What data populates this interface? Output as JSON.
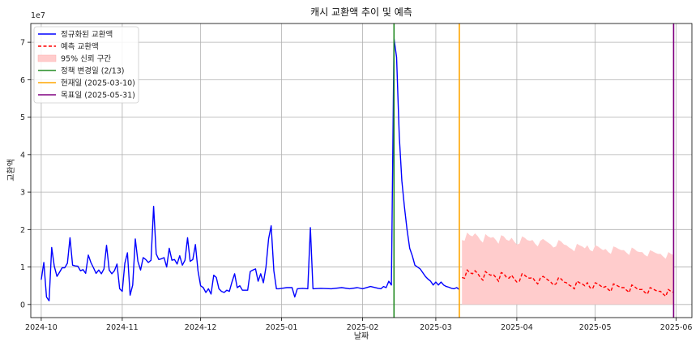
{
  "chart_data": {
    "type": "line",
    "title": "캐시 교환액 추이 및 예측",
    "xlabel": "날짜",
    "ylabel": "교환액",
    "y_scale_label": "1e7",
    "y_scale": 10000000,
    "xlim": [
      "2024-09-27",
      "2025-06-07"
    ],
    "ylim": [
      -0.35,
      7.5
    ],
    "grid": true,
    "legend_placement": "top-left",
    "x_ticks": [
      "2024-10-01",
      "2024-11-01",
      "2024-12-01",
      "2025-01-01",
      "2025-02-01",
      "2025-03-01",
      "2025-04-01",
      "2025-05-01",
      "2025-06-01"
    ],
    "x_tick_labels": [
      "2024-10",
      "2024-11",
      "2024-12",
      "2025-01",
      "2025-02",
      "2025-03",
      "2025-04",
      "2025-05",
      "2025-06"
    ],
    "y_ticks": [
      0,
      1,
      2,
      3,
      4,
      5,
      6,
      7
    ],
    "y_tick_labels": [
      "0",
      "1",
      "2",
      "3",
      "4",
      "5",
      "6",
      "7"
    ],
    "series": [
      {
        "name": "정규화된 교환액",
        "color": "#0000ff",
        "style": "solid",
        "x": [
          "2024-10-01",
          "2024-10-02",
          "2024-10-03",
          "2024-10-04",
          "2024-10-05",
          "2024-10-06",
          "2024-10-07",
          "2024-10-08",
          "2024-10-09",
          "2024-10-10",
          "2024-10-11",
          "2024-10-12",
          "2024-10-13",
          "2024-10-14",
          "2024-10-15",
          "2024-10-16",
          "2024-10-17",
          "2024-10-18",
          "2024-10-19",
          "2024-10-20",
          "2024-10-21",
          "2024-10-22",
          "2024-10-23",
          "2024-10-24",
          "2024-10-25",
          "2024-10-26",
          "2024-10-27",
          "2024-10-28",
          "2024-10-29",
          "2024-10-30",
          "2024-10-31",
          "2024-11-01",
          "2024-11-02",
          "2024-11-03",
          "2024-11-04",
          "2024-11-05",
          "2024-11-06",
          "2024-11-07",
          "2024-11-08",
          "2024-11-09",
          "2024-11-10",
          "2024-11-11",
          "2024-11-12",
          "2024-11-13",
          "2024-11-14",
          "2024-11-15",
          "2024-11-16",
          "2024-11-17",
          "2024-11-18",
          "2024-11-19",
          "2024-11-20",
          "2024-11-21",
          "2024-11-22",
          "2024-11-23",
          "2024-11-24",
          "2024-11-25",
          "2024-11-26",
          "2024-11-27",
          "2024-11-28",
          "2024-11-29",
          "2024-11-30",
          "2024-12-01",
          "2024-12-02",
          "2024-12-03",
          "2024-12-04",
          "2024-12-05",
          "2024-12-06",
          "2024-12-07",
          "2024-12-08",
          "2024-12-09",
          "2024-12-10",
          "2024-12-11",
          "2024-12-12",
          "2024-12-13",
          "2024-12-14",
          "2024-12-15",
          "2024-12-16",
          "2024-12-17",
          "2024-12-18",
          "2024-12-19",
          "2024-12-20",
          "2024-12-21",
          "2024-12-22",
          "2024-12-23",
          "2024-12-24",
          "2024-12-25",
          "2024-12-26",
          "2024-12-27",
          "2024-12-28",
          "2024-12-29",
          "2024-12-30",
          "2024-12-31",
          "2025-01-01",
          "2025-01-03",
          "2025-01-05",
          "2025-01-06",
          "2025-01-07",
          "2025-01-09",
          "2025-01-11",
          "2025-01-12",
          "2025-01-13",
          "2025-01-16",
          "2025-01-20",
          "2025-01-24",
          "2025-01-27",
          "2025-01-30",
          "2025-02-01",
          "2025-02-04",
          "2025-02-07",
          "2025-02-08",
          "2025-02-09",
          "2025-02-10",
          "2025-02-11",
          "2025-02-12",
          "2025-02-13",
          "2025-02-14",
          "2025-02-15",
          "2025-02-16",
          "2025-02-17",
          "2025-02-18",
          "2025-02-19",
          "2025-02-20",
          "2025-02-21",
          "2025-02-22",
          "2025-02-23",
          "2025-02-24",
          "2025-02-25",
          "2025-02-26",
          "2025-02-27",
          "2025-02-28",
          "2025-03-01",
          "2025-03-02",
          "2025-03-03",
          "2025-03-04",
          "2025-03-05",
          "2025-03-06",
          "2025-03-07",
          "2025-03-08",
          "2025-03-09",
          "2025-03-10"
        ],
        "values": [
          0.66,
          1.12,
          0.2,
          0.1,
          1.52,
          1.02,
          0.75,
          0.86,
          0.98,
          0.98,
          1.1,
          1.78,
          1.05,
          1.03,
          1.02,
          0.9,
          0.93,
          0.83,
          1.32,
          1.12,
          0.98,
          0.83,
          0.92,
          0.82,
          0.95,
          1.58,
          0.92,
          0.82,
          0.9,
          1.08,
          0.42,
          0.35,
          1.1,
          1.38,
          0.25,
          0.52,
          1.75,
          1.15,
          0.92,
          1.25,
          1.2,
          1.12,
          1.18,
          2.62,
          1.35,
          1.2,
          1.22,
          1.25,
          1.0,
          1.5,
          1.18,
          1.2,
          1.08,
          1.3,
          1.05,
          1.18,
          1.78,
          1.15,
          1.2,
          1.6,
          0.9,
          0.5,
          0.45,
          0.32,
          0.42,
          0.28,
          0.78,
          0.72,
          0.42,
          0.35,
          0.32,
          0.38,
          0.35,
          0.6,
          0.82,
          0.45,
          0.5,
          0.38,
          0.38,
          0.38,
          0.88,
          0.92,
          0.95,
          0.62,
          0.82,
          0.58,
          1.0,
          1.75,
          2.1,
          0.9,
          0.42,
          0.42,
          0.43,
          0.45,
          0.45,
          0.2,
          0.42,
          0.43,
          0.42,
          2.05,
          0.42,
          0.43,
          0.42,
          0.45,
          0.42,
          0.45,
          0.42,
          0.48,
          0.43,
          0.42,
          0.48,
          0.45,
          0.62,
          0.52,
          7.1,
          6.6,
          4.5,
          3.3,
          2.6,
          2.0,
          1.5,
          1.3,
          1.05,
          1.0,
          0.95,
          0.85,
          0.75,
          0.68,
          0.62,
          0.52,
          0.6,
          0.52,
          0.6,
          0.52,
          0.48,
          0.46,
          0.43,
          0.42,
          0.45,
          0.4
        ]
      },
      {
        "name": "예측 교환액",
        "color": "#ff0000",
        "style": "dashed",
        "x_start": "2025-03-11",
        "x_end": "2025-05-31",
        "values": [
          0.72,
          0.7,
          0.92,
          0.85,
          0.82,
          0.9,
          0.83,
          0.72,
          0.65,
          0.88,
          0.82,
          0.78,
          0.8,
          0.72,
          0.62,
          0.85,
          0.82,
          0.73,
          0.7,
          0.78,
          0.68,
          0.6,
          0.62,
          0.82,
          0.78,
          0.72,
          0.7,
          0.72,
          0.62,
          0.55,
          0.7,
          0.75,
          0.7,
          0.65,
          0.6,
          0.52,
          0.55,
          0.72,
          0.68,
          0.6,
          0.58,
          0.52,
          0.48,
          0.42,
          0.62,
          0.58,
          0.55,
          0.5,
          0.58,
          0.45,
          0.42,
          0.58,
          0.55,
          0.5,
          0.45,
          0.48,
          0.4,
          0.35,
          0.55,
          0.52,
          0.48,
          0.45,
          0.45,
          0.38,
          0.32,
          0.52,
          0.48,
          0.42,
          0.4,
          0.4,
          0.32,
          0.28,
          0.45,
          0.42,
          0.38,
          0.35,
          0.35,
          0.28,
          0.22,
          0.4,
          0.35,
          0.32
        ]
      }
    ],
    "confidence_band": {
      "name": "95% 신뢰 구간",
      "color": "#ffcccc",
      "x_start": "2025-03-11",
      "x_end": "2025-05-31",
      "offset": 1.0
    },
    "vlines": [
      {
        "name": "정책 변경일 (2/13)",
        "date": "2025-02-13",
        "color": "#228b22"
      },
      {
        "name": "현재일 (2025-03-10)",
        "date": "2025-03-10",
        "color": "#ffa500"
      },
      {
        "name": "목표일 (2025-05-31)",
        "date": "2025-05-31",
        "color": "#800080"
      }
    ]
  }
}
